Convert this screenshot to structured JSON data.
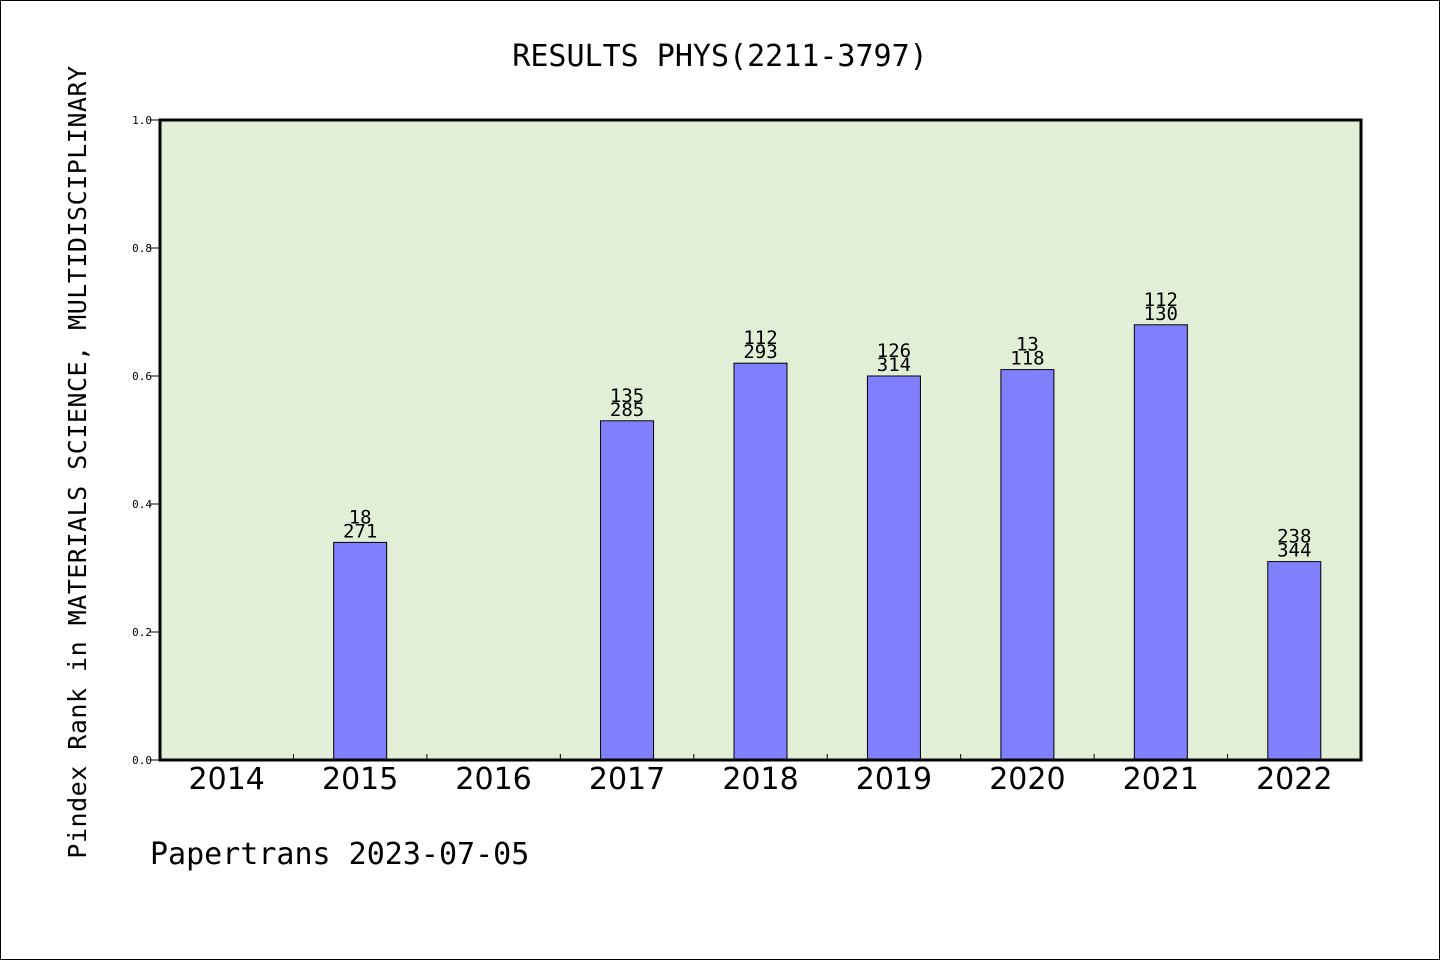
{
  "chart_data": {
    "type": "bar",
    "title": "RESULTS PHYS(2211-3797)",
    "ylabel": "Pindex Rank in MATERIALS SCIENCE, MULTIDISCIPLINARY",
    "xlabel": "",
    "footer": "Papertrans 2023-07-05",
    "categories": [
      "2014",
      "2015",
      "2016",
      "2017",
      "2018",
      "2019",
      "2020",
      "2021",
      "2022"
    ],
    "values": [
      null,
      0.34,
      null,
      0.53,
      0.62,
      0.6,
      0.61,
      0.68,
      0.31
    ],
    "labels_top": [
      "",
      "18",
      "",
      "135",
      "112",
      "126",
      "13",
      "112",
      "238"
    ],
    "labels_bottom": [
      "",
      "271",
      "",
      "285",
      "293",
      "314",
      "118",
      "130",
      "344"
    ],
    "ylim": [
      0,
      1.0
    ],
    "yticks": [
      "0.0",
      "0.2",
      "0.4",
      "0.6",
      "0.8",
      "1.0"
    ],
    "grid": false,
    "colors": {
      "bar": "#8080ff",
      "plot_background": "#e2efd7",
      "axis": "#000000"
    }
  }
}
